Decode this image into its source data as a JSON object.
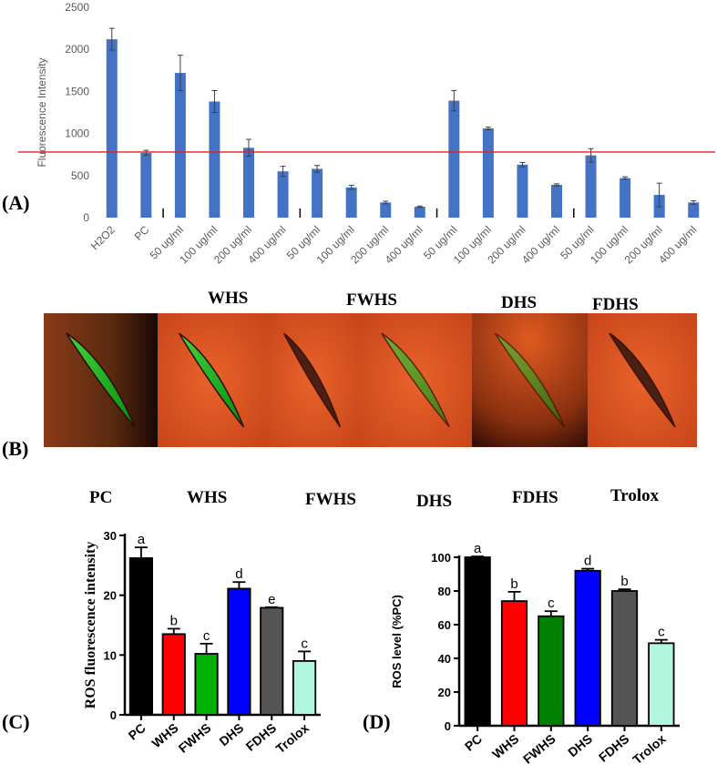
{
  "panel_labels": {
    "a": "(A)",
    "b": "(B)",
    "c": "(C)",
    "d": "(D)"
  },
  "panel_b": {
    "headers": [
      "WHS",
      "FWHS",
      "DHS",
      "FDHS"
    ],
    "images": [
      "worm-image-pc",
      "worm-image-whs",
      "worm-image-fwhs-1",
      "worm-image-fwhs-2",
      "worm-image-dhs",
      "worm-image-fdhs"
    ]
  },
  "group_headers": [
    "PC",
    "WHS",
    "FWHS",
    "DHS",
    "FDHS",
    "Trolox"
  ],
  "chart_data": [
    {
      "type": "bar",
      "panel": "A",
      "ylabel": "Fluorescence Intensity",
      "ylim": [
        0,
        2500
      ],
      "yticks": [
        0,
        500,
        1000,
        1500,
        2000,
        2500
      ],
      "categories": [
        "H2O2",
        "PC",
        "50 ug/ml",
        "100 ug/ml",
        "200 ug/ml",
        "400 ug/ml",
        "50 ug/ml",
        "100 ug/ml",
        "200 ug/ml",
        "400 ug/ml",
        "50 ug/ml",
        "100 ug/ml",
        "200 ug/ml",
        "400 ug/ml",
        "50 ug/ml",
        "100 ug/ml",
        "200 ug/ml",
        "400 ug/ml"
      ],
      "values": [
        2120,
        770,
        1720,
        1380,
        830,
        550,
        580,
        360,
        180,
        130,
        1390,
        1060,
        630,
        390,
        740,
        470,
        270,
        180
      ],
      "errors": [
        130,
        30,
        210,
        130,
        100,
        60,
        40,
        25,
        15,
        8,
        120,
        15,
        25,
        12,
        80,
        15,
        140,
        20
      ],
      "reference_line": 780,
      "reference_color": "#e02020",
      "bar_color": "#4472c4",
      "group_separators_after": [
        1,
        5,
        9,
        13
      ]
    },
    {
      "type": "bar",
      "panel": "C",
      "ylabel": "ROS fluorescence intensity",
      "ylim": [
        0,
        30
      ],
      "yticks": [
        0,
        10,
        20,
        30
      ],
      "categories": [
        "PC",
        "WHS",
        "FWHS",
        "DHS",
        "FDHS",
        "Trolox"
      ],
      "values": [
        26.2,
        13.5,
        10.2,
        21.1,
        17.9,
        9.0
      ],
      "errors": [
        1.8,
        0.9,
        1.7,
        1.1,
        0.1,
        1.6
      ],
      "letters": [
        "a",
        "b",
        "c",
        "d",
        "e",
        "c"
      ],
      "colors": [
        "#000000",
        "#ff0000",
        "#00b000",
        "#0000ff",
        "#555555",
        "#b0f5dc"
      ]
    },
    {
      "type": "bar",
      "panel": "D",
      "ylabel": "ROS level (%PC)",
      "ylim": [
        0,
        100
      ],
      "yticks": [
        0,
        20,
        40,
        60,
        80,
        100
      ],
      "categories": [
        "PC",
        "WHS",
        "FWHS",
        "DHS",
        "FDHS",
        "Trolox"
      ],
      "values": [
        100,
        74,
        65,
        92,
        80,
        49
      ],
      "errors": [
        0.5,
        5.5,
        3,
        1.2,
        1,
        2
      ],
      "letters": [
        "a",
        "b",
        "c",
        "d",
        "b",
        "c"
      ],
      "colors": [
        "#000000",
        "#ff0000",
        "#008000",
        "#0000ff",
        "#555555",
        "#b0f5dc"
      ]
    }
  ]
}
